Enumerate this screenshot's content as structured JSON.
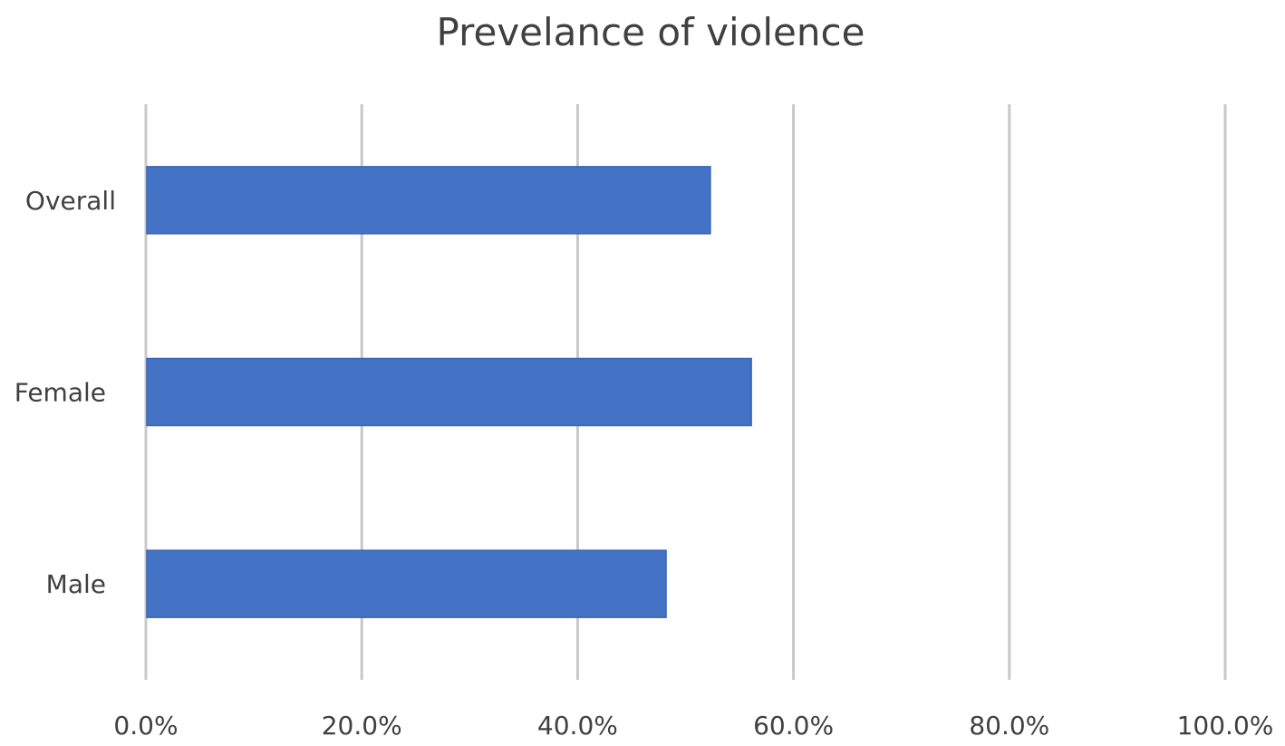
{
  "chart_data": {
    "type": "bar",
    "orientation": "horizontal",
    "title": "Prevelance of violence",
    "xlabel": "",
    "ylabel": "",
    "categories": [
      "Overall",
      "Female",
      "Male"
    ],
    "values": [
      0.523,
      0.561,
      0.482
    ],
    "xlim": [
      0,
      1
    ],
    "x_ticks": [
      0,
      0.2,
      0.4,
      0.6,
      0.8,
      1.0
    ],
    "x_tick_labels": [
      "0.0%",
      "20.0%",
      "40.0%",
      "60.0%",
      "80.0%",
      "100.0%"
    ],
    "grid": true,
    "legend": "none",
    "bar_color": "#4472c4"
  }
}
